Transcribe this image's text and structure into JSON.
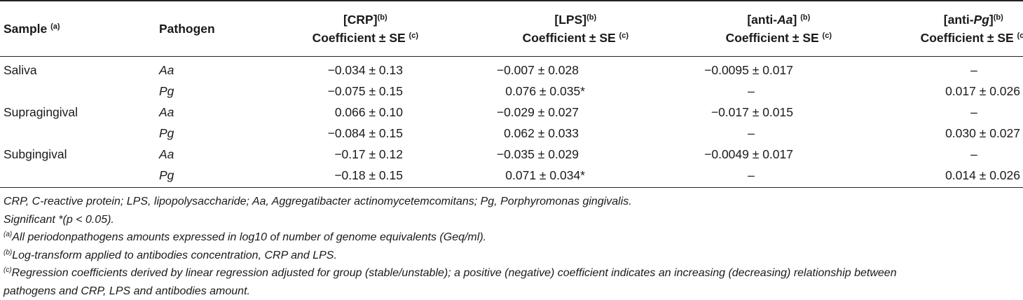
{
  "header": {
    "sample": "Sample",
    "sample_sup": "(a)",
    "pathogen": "Pathogen",
    "crp": "[CRP]",
    "crp_sup": "(b)",
    "lps": "[LPS]",
    "lps_sup": "(b)",
    "anti_aa_prefix": "[anti-",
    "anti_aa_italic": "Aa",
    "anti_aa_suffix": "]",
    "anti_aa_sup": "(b)",
    "anti_pg_prefix": "[anti-",
    "anti_pg_italic": "Pg",
    "anti_pg_suffix": "]",
    "anti_pg_sup": "(b)",
    "coef": "Coefficient ± SE",
    "coef_sup": "(c)"
  },
  "rows": [
    {
      "sample": "Saliva",
      "pathogen": "Aa",
      "crp": "−0.034 ± 0.13",
      "lps": "−0.007 ± 0.028",
      "aa": "−0.0095 ± 0.017",
      "pg": "–"
    },
    {
      "sample": "",
      "pathogen": "Pg",
      "crp": "−0.075 ± 0.15",
      "lps": "0.076 ± 0.035*",
      "aa": "–",
      "pg": "0.017 ± 0.026"
    },
    {
      "sample": "Supragingival",
      "pathogen": "Aa",
      "crp": "0.066 ± 0.10",
      "lps": "−0.029 ± 0.027",
      "aa": "−0.017 ± 0.015",
      "pg": "–"
    },
    {
      "sample": "",
      "pathogen": "Pg",
      "crp": "−0.084 ± 0.15",
      "lps": "0.062 ± 0.033",
      "aa": "–",
      "pg": "0.030 ± 0.027"
    },
    {
      "sample": "Subgingival",
      "pathogen": "Aa",
      "crp": "−0.17 ± 0.12",
      "lps": "−0.035 ± 0.029",
      "aa": "−0.0049 ± 0.017",
      "pg": "–"
    },
    {
      "sample": "",
      "pathogen": "Pg",
      "crp": "−0.18 ± 0.15",
      "lps": "0.071 ± 0.034*",
      "aa": "–",
      "pg": "0.014 ± 0.026"
    }
  ],
  "footnotes": {
    "abbrev": "CRP, C-reactive protein; LPS, lipopolysaccharide; Aa, Aggregatibacter actinomycetemcomitans; Pg, Porphyromonas gingivalis.",
    "significance": "Significant *(p < 0.05).",
    "a_mark": "(a)",
    "a_text": "All periodonpathogens amounts expressed in log10 of number of genome equivalents (Geq/ml).",
    "b_mark": "(b)",
    "b_text": "Log-transform applied to antibodies concentration, CRP and LPS.",
    "c_mark": "(c)",
    "c_text_line1": "Regression coefficients derived by linear regression adjusted for group (stable/unstable); a positive (negative) coefficient indicates an increasing (decreasing) relationship between",
    "c_text_line2": "pathogens and CRP, LPS and antibodies amount."
  }
}
